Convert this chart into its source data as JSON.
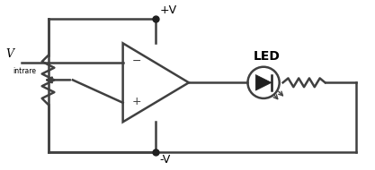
{
  "bg_color": "#ffffff",
  "line_color": "#404040",
  "line_width": 1.8,
  "dot_color": "#202020",
  "text_color": "#000000",
  "v_intrare_label": "V",
  "v_intrare_sub": "intrare",
  "led_label": "LED",
  "plus_v": "+V",
  "minus_v": "-V",
  "figw": 4.17,
  "figh": 1.9,
  "dpi": 100
}
